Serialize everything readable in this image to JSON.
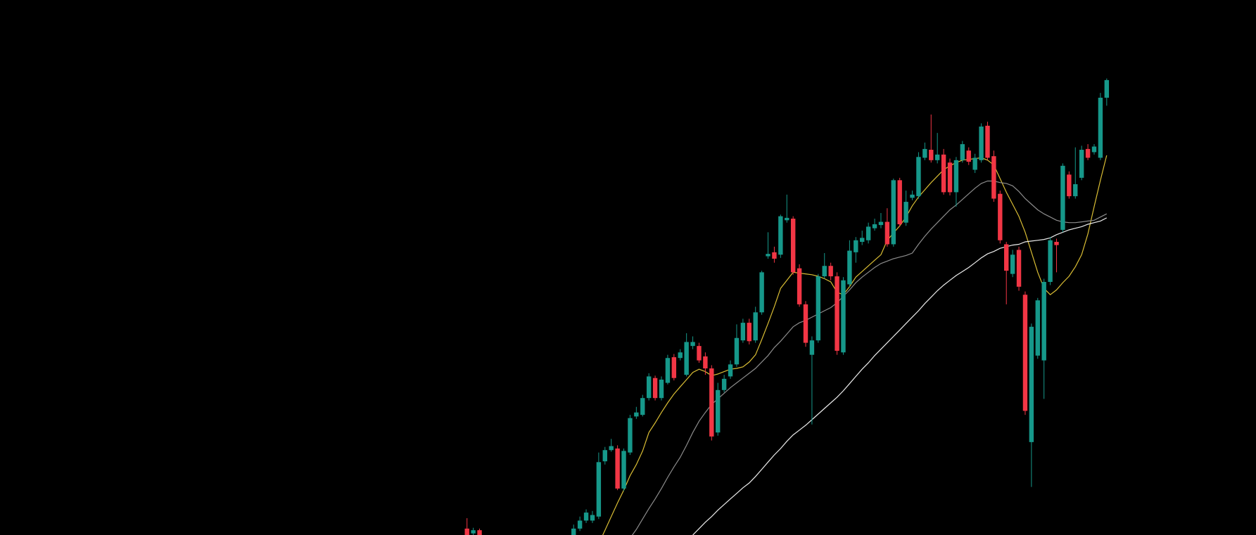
{
  "chart_data": {
    "type": "candlestick",
    "categories": [
      null,
      null,
      null,
      null,
      null,
      null,
      null,
      null,
      null,
      null,
      null,
      null,
      null,
      null,
      null,
      null,
      null,
      null,
      null,
      null,
      null,
      null,
      null,
      null,
      null,
      null,
      null,
      null,
      null,
      null,
      null,
      null,
      null,
      null,
      null,
      null,
      null,
      null,
      null,
      null,
      null,
      null,
      null,
      null,
      null,
      null,
      null,
      null,
      null,
      null,
      null,
      null,
      null,
      null,
      null,
      null,
      null,
      null,
      null,
      null,
      null,
      null,
      null,
      null,
      null,
      null,
      null,
      null,
      null,
      null,
      null,
      null,
      null,
      null,
      null,
      null,
      null,
      null,
      null,
      null,
      null,
      null,
      null,
      null,
      null,
      null,
      null,
      null,
      null,
      null,
      null,
      null,
      null,
      null,
      null,
      null,
      null,
      null,
      null,
      null,
      null,
      null,
      null
    ],
    "open": [
      8,
      2,
      6,
      null,
      null,
      null,
      null,
      null,
      null,
      null,
      null,
      null,
      null,
      null,
      null,
      null,
      null,
      0,
      8,
      18,
      18,
      23,
      92,
      106,
      108,
      58,
      103,
      148,
      150,
      171,
      196,
      171,
      190,
      222,
      221,
      200,
      236,
      236,
      223,
      208,
      128,
      181,
      198,
      213,
      243,
      265,
      243,
      278,
      348,
      353,
      350,
      393,
      395,
      333,
      288,
      225,
      243,
      323,
      336,
      323,
      228,
      313,
      353,
      366,
      368,
      383,
      387,
      391,
      363,
      443,
      390,
      421,
      423,
      471,
      481,
      468,
      475,
      465,
      428,
      468,
      480,
      456,
      468,
      511,
      473,
      426,
      363,
      326,
      356,
      300,
      116,
      224,
      218,
      316,
      366,
      381,
      450,
      423,
      446,
      482,
      478,
      471,
      546
    ],
    "high": [
      21,
      9,
      8,
      null,
      null,
      null,
      null,
      null,
      null,
      null,
      null,
      null,
      null,
      null,
      null,
      null,
      null,
      13,
      23,
      32,
      30,
      103,
      110,
      120,
      112,
      108,
      150,
      160,
      175,
      202,
      199,
      198,
      225,
      226,
      232,
      252,
      248,
      240,
      228,
      212,
      190,
      200,
      218,
      263,
      270,
      270,
      285,
      330,
      378,
      360,
      400,
      425,
      398,
      338,
      292,
      248,
      326,
      352,
      340,
      328,
      322,
      368,
      372,
      380,
      390,
      395,
      402,
      408,
      445,
      446,
      430,
      430,
      478,
      490,
      525,
      502,
      482,
      470,
      472,
      492,
      484,
      476,
      514,
      516,
      480,
      430,
      366,
      356,
      360,
      304,
      264,
      296,
      320,
      372,
      370,
      464,
      454,
      484,
      486,
      488,
      488,
      552,
      570
    ],
    "low": [
      -3,
      0,
      -3,
      null,
      null,
      null,
      null,
      null,
      null,
      null,
      null,
      null,
      null,
      null,
      null,
      null,
      null,
      -3,
      5,
      15,
      15,
      20,
      88,
      104,
      56,
      55,
      100,
      145,
      148,
      168,
      168,
      168,
      188,
      193,
      218,
      198,
      232,
      215,
      200,
      118,
      124,
      178,
      195,
      210,
      240,
      238,
      240,
      275,
      345,
      340,
      346,
      390,
      325,
      285,
      235,
      138,
      240,
      320,
      318,
      225,
      225,
      310,
      340,
      362,
      364,
      380,
      383,
      360,
      360,
      385,
      386,
      418,
      420,
      468,
      465,
      464,
      425,
      424,
      410,
      465,
      462,
      452,
      465,
      468,
      416,
      364,
      288,
      322,
      305,
      150,
      60,
      220,
      170,
      312,
      328,
      378,
      420,
      420,
      443,
      468,
      475,
      468,
      536
    ],
    "close": [
      0,
      6,
      0,
      null,
      null,
      null,
      null,
      null,
      null,
      null,
      null,
      null,
      null,
      null,
      null,
      null,
      null,
      8,
      18,
      28,
      25,
      91,
      106,
      111,
      58,
      105,
      146,
      153,
      171,
      198,
      171,
      194,
      221,
      196,
      228,
      241,
      241,
      218,
      208,
      123,
      181,
      195,
      213,
      246,
      265,
      242,
      278,
      328,
      351,
      345,
      398,
      396,
      328,
      288,
      240,
      243,
      323,
      336,
      323,
      230,
      318,
      355,
      368,
      371,
      385,
      388,
      391,
      363,
      443,
      388,
      416,
      425,
      472,
      482,
      468,
      475,
      428,
      428,
      468,
      488,
      466,
      471,
      510,
      471,
      420,
      368,
      330,
      350,
      310,
      155,
      260,
      293,
      316,
      368,
      362,
      461,
      423,
      438,
      481,
      471,
      485,
      546,
      568
    ],
    "up_color": "#16988a",
    "down_color": "#f23645",
    "series": [
      {
        "color": "#d9bd34",
        "values": [
          null,
          null,
          null,
          null,
          null,
          null,
          null,
          null,
          null,
          null,
          null,
          null,
          null,
          null,
          null,
          null,
          null,
          null,
          null,
          null,
          null,
          -11,
          6,
          23,
          40,
          56,
          74,
          88,
          105,
          128,
          140,
          153,
          165,
          176,
          185,
          194,
          203,
          207,
          204,
          199,
          201,
          204,
          207,
          208,
          210,
          216,
          225,
          244,
          264,
          285,
          308,
          318,
          328,
          327,
          326,
          325,
          323,
          320,
          316,
          303,
          300,
          310,
          322,
          329,
          336,
          343,
          350,
          368,
          377,
          386,
          397,
          411,
          422,
          431,
          440,
          448,
          456,
          461,
          465,
          468,
          469,
          470,
          471,
          468,
          462,
          445,
          428,
          413,
          398,
          378,
          353,
          328,
          308,
          300,
          306,
          315,
          323,
          335,
          350,
          376,
          410,
          443,
          474
        ]
      },
      {
        "color": "#8c8c8c",
        "values": [
          null,
          null,
          null,
          null,
          null,
          null,
          null,
          null,
          null,
          null,
          null,
          null,
          null,
          null,
          null,
          null,
          null,
          null,
          null,
          null,
          null,
          null,
          null,
          null,
          null,
          null,
          -4,
          7,
          20,
          33,
          45,
          58,
          72,
          85,
          97,
          112,
          128,
          142,
          153,
          163,
          170,
          177,
          184,
          190,
          196,
          202,
          208,
          216,
          224,
          234,
          242,
          251,
          260,
          265,
          268,
          272,
          276,
          280,
          284,
          290,
          298,
          306,
          315,
          322,
          328,
          334,
          339,
          342,
          345,
          347,
          349,
          352,
          363,
          373,
          382,
          390,
          398,
          406,
          412,
          419,
          426,
          433,
          439,
          442,
          442,
          440,
          439,
          436,
          429,
          420,
          413,
          406,
          401,
          397,
          393,
          391,
          390,
          390,
          391,
          392,
          393,
          397,
          401
        ]
      },
      {
        "color": "#ececec",
        "values": [
          null,
          null,
          null,
          null,
          null,
          null,
          null,
          null,
          null,
          null,
          null,
          null,
          null,
          null,
          null,
          null,
          null,
          null,
          null,
          null,
          null,
          null,
          null,
          null,
          null,
          null,
          null,
          null,
          null,
          null,
          null,
          null,
          null,
          null,
          null,
          null,
          0,
          8,
          16,
          23,
          31,
          38,
          45,
          52,
          59,
          65,
          73,
          82,
          91,
          100,
          108,
          117,
          125,
          131,
          137,
          144,
          151,
          158,
          165,
          172,
          180,
          189,
          198,
          207,
          215,
          224,
          232,
          240,
          248,
          256,
          264,
          272,
          280,
          289,
          297,
          305,
          312,
          318,
          324,
          329,
          334,
          340,
          346,
          351,
          354,
          358,
          360,
          362,
          363,
          366,
          367,
          368,
          369,
          371,
          375,
          378,
          381,
          383,
          385,
          388,
          390,
          392,
          396
        ]
      }
    ],
    "ylim": [
      0,
      668
    ]
  }
}
